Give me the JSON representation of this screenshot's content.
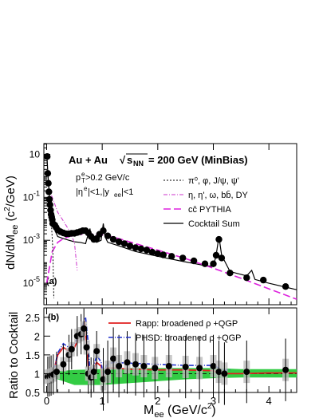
{
  "figure": {
    "header": "Au + Au",
    "sqrt_s": "s",
    "sqrt_s_sub": "NN",
    "energy": "= 200 GeV (MinBias)",
    "cut_pt_main": "p",
    "cut_pt_sub": "T",
    "cut_pt_sup": "e",
    "cut_pt_val": ">0.2 GeV/c",
    "cut_eta_main": "|η",
    "cut_eta_sup": "e",
    "cut_eta_val": "|<1,|y",
    "cut_eta_sub": "ee",
    "cut_eta_end": "|<1",
    "xlabel_main": "M",
    "xlabel_sub": "ee",
    "xlabel_unit": " (GeV/c",
    "xlabel_unit_sup": "2",
    "xlabel_unit_end": ")",
    "top_ylabel": "dN/dM",
    "top_ylabel_sub": "ee",
    "top_ylabel_unit": " (c",
    "top_ylabel_unit_sup": "2",
    "top_ylabel_unit_end": "/GeV)",
    "bottom_ylabel": "Ratio to Cocktail",
    "panel_a": "(a)",
    "panel_b": "(b)"
  },
  "colors": {
    "data": "#000000",
    "light_mesons": "#000000",
    "heavy": "#cc33cc",
    "charm": "#dd22dd",
    "cocktail": "#000000",
    "rapp": "#e02020",
    "phsd": "#2030cc",
    "band": "#33cc44",
    "syserr": "#bbbbbb"
  },
  "chart_data": [
    {
      "type": "line",
      "panel": "top",
      "ylabel": "dN/dMee (c²/GeV)",
      "xlim": [
        -0.05,
        4.5
      ],
      "ylim_log10": [
        -6,
        1.5
      ],
      "y_scale": "log",
      "y_ticks": [
        {
          "e": 1,
          "label_main": "10",
          "label_exp": ""
        },
        {
          "e": -1,
          "label_main": "10",
          "label_exp": "-1"
        },
        {
          "e": -3,
          "label_main": "10",
          "label_exp": "-3"
        },
        {
          "e": -5,
          "label_main": "10",
          "label_exp": "-5"
        }
      ],
      "legend": [
        {
          "label": "π⁰, φ, J/ψ, ψ'",
          "style": "light_mesons"
        },
        {
          "label": "η, η', ω, bb̄, DY",
          "style": "heavy"
        },
        {
          "label": "cc̄ PYTHIA",
          "style": "charm"
        },
        {
          "label": "Cocktail Sum",
          "style": "cocktail"
        }
      ],
      "series": [
        {
          "name": "Data",
          "style": "data",
          "points": [
            [
              0.01,
              7.9
            ],
            [
              0.02,
              1.3
            ],
            [
              0.03,
              0.45
            ],
            [
              0.04,
              0.18
            ],
            [
              0.05,
              0.08
            ],
            [
              0.06,
              0.045
            ],
            [
              0.07,
              0.025
            ],
            [
              0.08,
              0.016
            ],
            [
              0.09,
              0.012
            ],
            [
              0.1,
              0.009
            ],
            [
              0.11,
              0.006
            ],
            [
              0.13,
              0.0055
            ],
            [
              0.15,
              0.005
            ],
            [
              0.17,
              0.004
            ],
            [
              0.2,
              0.003
            ],
            [
              0.25,
              0.0025
            ],
            [
              0.3,
              0.0022
            ],
            [
              0.35,
              0.002
            ],
            [
              0.4,
              0.002
            ],
            [
              0.45,
              0.0021
            ],
            [
              0.5,
              0.0021
            ],
            [
              0.55,
              0.0023
            ],
            [
              0.6,
              0.0025
            ],
            [
              0.65,
              0.0028
            ],
            [
              0.7,
              0.0028
            ],
            [
              0.75,
              0.0022
            ],
            [
              0.8,
              0.0015
            ],
            [
              0.85,
              0.0011
            ],
            [
              0.9,
              0.0012
            ],
            [
              0.95,
              0.0019
            ],
            [
              1.02,
              0.0028
            ],
            [
              1.1,
              0.0016
            ],
            [
              1.2,
              0.0011
            ],
            [
              1.3,
              0.00085
            ],
            [
              1.4,
              0.0007
            ],
            [
              1.5,
              0.00055
            ],
            [
              1.6,
              0.00045
            ],
            [
              1.7,
              0.0004
            ],
            [
              1.8,
              0.00035
            ],
            [
              1.9,
              0.00028
            ],
            [
              2.0,
              0.00024
            ],
            [
              2.1,
              0.00021
            ],
            [
              2.25,
              0.00018
            ],
            [
              2.45,
              0.00015
            ],
            [
              2.65,
              0.00011
            ],
            [
              2.85,
              8e-05
            ],
            [
              3.0,
              8e-05
            ],
            [
              3.05,
              0.0002
            ],
            [
              3.1,
              0.0011
            ],
            [
              3.15,
              0.00015
            ],
            [
              3.3,
              3e-05
            ],
            [
              3.6,
              1.8e-05
            ],
            [
              3.9,
              1.4e-05
            ],
            [
              4.3,
              7e-06
            ]
          ]
        },
        {
          "name": "Cocktail Sum",
          "style": "cocktail",
          "points": [
            [
              0.0,
              10.0
            ],
            [
              0.01,
              5.0
            ],
            [
              0.02,
              1.5
            ],
            [
              0.03,
              0.55
            ],
            [
              0.05,
              0.12
            ],
            [
              0.08,
              0.03
            ],
            [
              0.1,
              0.015
            ],
            [
              0.12,
              0.008
            ],
            [
              0.14,
              0.004
            ],
            [
              0.16,
              0.0025
            ],
            [
              0.2,
              0.0015
            ],
            [
              0.3,
              0.0012
            ],
            [
              0.4,
              0.001
            ],
            [
              0.5,
              0.00085
            ],
            [
              0.6,
              0.0008
            ],
            [
              0.7,
              0.0007
            ],
            [
              0.75,
              0.002
            ],
            [
              0.78,
              0.0035
            ],
            [
              0.8,
              0.0012
            ],
            [
              0.9,
              0.0008
            ],
            [
              0.98,
              0.001
            ],
            [
              1.02,
              0.006
            ],
            [
              1.05,
              0.0015
            ],
            [
              1.1,
              0.0008
            ],
            [
              1.3,
              0.00055
            ],
            [
              1.6,
              0.0003
            ],
            [
              2.0,
              0.00018
            ],
            [
              2.4,
              0.00011
            ],
            [
              2.8,
              7e-05
            ],
            [
              3.0,
              6e-05
            ],
            [
              3.05,
              0.0002
            ],
            [
              3.1,
              0.0015
            ],
            [
              3.15,
              0.0002
            ],
            [
              3.3,
              3.5e-05
            ],
            [
              3.6,
              2.2e-05
            ],
            [
              3.69,
              4e-05
            ],
            [
              3.75,
              1.5e-05
            ],
            [
              4.0,
              1e-05
            ],
            [
              4.5,
              5e-06
            ]
          ]
        },
        {
          "name": "cc̄ PYTHIA",
          "style": "charm",
          "points": [
            [
              0.0,
              1e-05
            ],
            [
              0.1,
              0.0003
            ],
            [
              0.2,
              0.0008
            ],
            [
              0.3,
              0.0012
            ],
            [
              0.5,
              0.0018
            ],
            [
              0.8,
              0.002
            ],
            [
              1.0,
              0.0018
            ],
            [
              1.3,
              0.0012
            ],
            [
              1.6,
              0.0007
            ],
            [
              2.0,
              0.00035
            ],
            [
              2.5,
              0.00014
            ],
            [
              3.0,
              5e-05
            ],
            [
              3.5,
              1.7e-05
            ],
            [
              4.0,
              5.5e-06
            ],
            [
              4.5,
              1.8e-06
            ]
          ]
        },
        {
          "name": "η, η', ω, bb̄, DY",
          "style": "heavy",
          "points": [
            [
              0.0,
              0.2
            ],
            [
              0.05,
              0.2
            ],
            [
              0.1,
              0.1
            ],
            [
              0.2,
              0.02
            ],
            [
              0.3,
              0.008
            ],
            [
              0.4,
              0.003
            ],
            [
              0.5,
              0.0008
            ],
            [
              0.55,
              4e-05
            ]
          ]
        },
        {
          "name": "π⁰, φ, J/ψ, ψ'",
          "style": "light_mesons",
          "points": [
            [
              0.0,
              10.0
            ],
            [
              0.02,
              1.2
            ],
            [
              0.05,
              0.1
            ],
            [
              0.08,
              0.01
            ],
            [
              0.11,
              0.0005
            ],
            [
              0.13,
              2e-06
            ]
          ]
        }
      ]
    },
    {
      "type": "line",
      "panel": "bottom",
      "ylabel": "Ratio to Cocktail",
      "xlim": [
        -0.05,
        4.5
      ],
      "ylim": [
        0.5,
        2.75
      ],
      "x_ticks": [
        0,
        1,
        2,
        3,
        4
      ],
      "y_ticks": [
        0.5,
        1,
        1.5,
        2,
        2.5
      ],
      "legend": [
        {
          "label": "Rapp: broadened ρ +QGP",
          "style": "rapp"
        },
        {
          "label": "PHSD: broadened ρ +QGP",
          "style": "phsd"
        }
      ],
      "series": [
        {
          "name": "Data",
          "style": "data",
          "points": [
            [
              0.02,
              0.92
            ],
            [
              0.05,
              0.93
            ],
            [
              0.08,
              0.95
            ],
            [
              0.12,
              0.98
            ],
            [
              0.18,
              1.05
            ],
            [
              0.3,
              1.25
            ],
            [
              0.4,
              1.5
            ],
            [
              0.45,
              1.65
            ],
            [
              0.55,
              2.0
            ],
            [
              0.62,
              2.05
            ],
            [
              0.67,
              2.2
            ],
            [
              0.72,
              1.7
            ],
            [
              0.75,
              1.0
            ],
            [
              0.8,
              0.9
            ],
            [
              0.85,
              1.05
            ],
            [
              0.9,
              1.6
            ],
            [
              1.02,
              0.85
            ],
            [
              1.1,
              1.05
            ],
            [
              1.2,
              1.4
            ],
            [
              1.3,
              1.2
            ],
            [
              1.45,
              1.3
            ],
            [
              1.6,
              1.25
            ],
            [
              1.75,
              1.2
            ],
            [
              1.95,
              1.15
            ],
            [
              2.2,
              1.2
            ],
            [
              2.5,
              1.18
            ],
            [
              2.75,
              1.15
            ],
            [
              3.0,
              1.2
            ],
            [
              3.1,
              1.05
            ],
            [
              3.2,
              1.0
            ],
            [
              3.6,
              1.05
            ],
            [
              4.3,
              1.1
            ]
          ]
        },
        {
          "name": "Rapp: broadened ρ +QGP",
          "style": "rapp",
          "points": [
            [
              0.0,
              1.0
            ],
            [
              0.05,
              1.0
            ],
            [
              0.1,
              1.05
            ],
            [
              0.15,
              1.2
            ],
            [
              0.2,
              1.5
            ],
            [
              0.3,
              1.7
            ],
            [
              0.4,
              1.6
            ],
            [
              0.5,
              1.7
            ],
            [
              0.6,
              2.0
            ],
            [
              0.68,
              2.4
            ],
            [
              0.72,
              1.8
            ],
            [
              0.76,
              1.0
            ],
            [
              0.8,
              0.95
            ],
            [
              0.9,
              1.3
            ],
            [
              0.98,
              1.2
            ],
            [
              1.02,
              0.75
            ],
            [
              1.08,
              1.15
            ],
            [
              1.2,
              1.15
            ],
            [
              1.5,
              1.12
            ],
            [
              2.0,
              1.1
            ],
            [
              2.5,
              1.1
            ],
            [
              3.0,
              1.08
            ],
            [
              3.1,
              1.0
            ],
            [
              3.2,
              1.0
            ],
            [
              3.5,
              1.0
            ],
            [
              4.0,
              1.02
            ],
            [
              4.5,
              1.02
            ]
          ]
        },
        {
          "name": "PHSD: broadened ρ +QGP",
          "style": "phsd",
          "points": [
            [
              0.0,
              1.0
            ],
            [
              0.05,
              1.0
            ],
            [
              0.1,
              1.05
            ],
            [
              0.15,
              1.2
            ],
            [
              0.2,
              1.55
            ],
            [
              0.3,
              1.8
            ],
            [
              0.4,
              1.7
            ],
            [
              0.5,
              1.8
            ],
            [
              0.6,
              2.1
            ],
            [
              0.7,
              2.5
            ],
            [
              0.75,
              1.8
            ],
            [
              0.78,
              1.05
            ],
            [
              0.82,
              1.0
            ],
            [
              0.9,
              1.5
            ],
            [
              0.98,
              1.3
            ],
            [
              1.02,
              0.95
            ],
            [
              1.08,
              1.25
            ],
            [
              1.2,
              1.3
            ],
            [
              1.5,
              1.28
            ],
            [
              2.0,
              1.25
            ],
            [
              2.5,
              1.22
            ],
            [
              3.0,
              1.22
            ],
            [
              3.1,
              1.15
            ],
            [
              3.2,
              1.1
            ],
            [
              3.3,
              1.1
            ]
          ]
        },
        {
          "name": "Cocktail uncertainty",
          "style": "band",
          "upper": [
            [
              0.0,
              1.05
            ],
            [
              0.5,
              1.1
            ],
            [
              1.0,
              1.12
            ],
            [
              1.5,
              1.15
            ],
            [
              2.0,
              1.15
            ],
            [
              2.5,
              1.15
            ],
            [
              3.0,
              1.15
            ],
            [
              3.5,
              1.12
            ],
            [
              4.0,
              1.12
            ],
            [
              4.5,
              1.12
            ]
          ],
          "lower": [
            [
              0.0,
              0.95
            ],
            [
              0.5,
              0.7
            ],
            [
              1.0,
              0.7
            ],
            [
              1.5,
              0.75
            ],
            [
              2.0,
              0.8
            ],
            [
              2.5,
              0.85
            ],
            [
              3.0,
              0.88
            ],
            [
              3.5,
              0.9
            ],
            [
              4.0,
              0.9
            ],
            [
              4.5,
              0.9
            ]
          ]
        }
      ]
    }
  ]
}
